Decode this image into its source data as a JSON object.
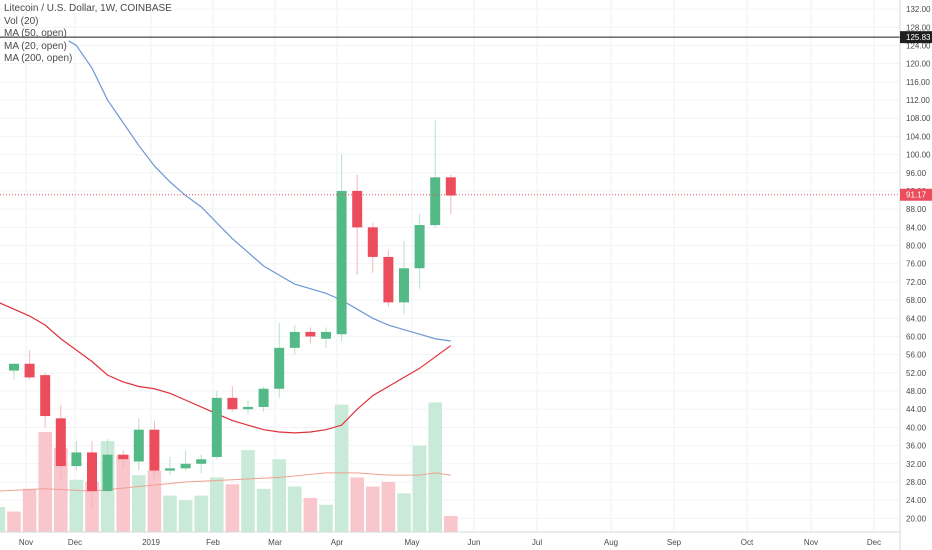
{
  "legend": {
    "title": "Litecoin / U.S. Dollar, 1W, COINBASE",
    "vol": "Vol (20)",
    "ma50": "MA (50, open)",
    "ma20": "MA (20, open)",
    "ma200": "MA (200, open)"
  },
  "price_tags": {
    "horizontal_line": "125.83",
    "last_price": "91.17"
  },
  "colors": {
    "up": "#53b987",
    "down": "#eb4d5c",
    "ma_blue": "#6f98d4",
    "ma_red": "#e0303a",
    "vol_ma": "#f0a090",
    "last_price_line": "#eb4d5c",
    "horizontal_line": "#1a1a1a"
  },
  "chart_data": {
    "type": "candlestick",
    "title": "Litecoin / U.S. Dollar, 1W, COINBASE",
    "x_labels": [
      "Nov",
      "Dec",
      "2019",
      "Feb",
      "Mar",
      "Apr",
      "May",
      "Jun",
      "Jul",
      "Aug",
      "Sep",
      "Oct",
      "Nov",
      "Dec"
    ],
    "y_ticks": [
      20,
      24,
      28,
      32,
      36,
      40,
      44,
      48,
      52,
      56,
      60,
      64,
      68,
      72,
      76,
      80,
      84,
      88,
      92,
      96,
      100,
      104,
      108,
      112,
      116,
      120,
      124,
      128,
      132
    ],
    "y_tick_labels": [
      "20.00",
      "24.00",
      "28.00",
      "32.00",
      "36.00",
      "40.00",
      "44.00",
      "48.00",
      "52.00",
      "56.00",
      "60.00",
      "64.00",
      "68.00",
      "72.00",
      "76.00",
      "80.00",
      "84.00",
      "88.00",
      "92.00",
      "96.00",
      "100.00",
      "104.00",
      "108.00",
      "112.00",
      "116.00",
      "120.00",
      "124.00",
      "128.00",
      "132.00"
    ],
    "ylim": [
      17,
      134
    ],
    "horizontal_line": 125.83,
    "last_price": 91.17,
    "candles": [
      {
        "i": 0,
        "o": 52.5,
        "h": 53.5,
        "l": 50.5,
        "c": 54.0
      },
      {
        "i": 1,
        "o": 54.0,
        "h": 57.0,
        "l": 50.5,
        "c": 51.0
      },
      {
        "i": 2,
        "o": 51.5,
        "h": 52.0,
        "l": 40.0,
        "c": 42.5
      },
      {
        "i": 3,
        "o": 42.0,
        "h": 45.0,
        "l": 28.0,
        "c": 31.5
      },
      {
        "i": 4,
        "o": 31.5,
        "h": 37.0,
        "l": 30.5,
        "c": 34.5
      },
      {
        "i": 5,
        "o": 34.5,
        "h": 37.0,
        "l": 22.0,
        "c": 26.0
      },
      {
        "i": 6,
        "o": 26.0,
        "h": 37.5,
        "l": 25.5,
        "c": 34.0
      },
      {
        "i": 7,
        "o": 34.0,
        "h": 35.0,
        "l": 31.0,
        "c": 33.0
      },
      {
        "i": 8,
        "o": 32.5,
        "h": 42.0,
        "l": 30.5,
        "c": 39.5
      },
      {
        "i": 9,
        "o": 39.5,
        "h": 41.5,
        "l": 29.0,
        "c": 30.5
      },
      {
        "i": 10,
        "o": 30.5,
        "h": 33.5,
        "l": 29.5,
        "c": 31.0
      },
      {
        "i": 11,
        "o": 31.0,
        "h": 35.0,
        "l": 30.5,
        "c": 32.0
      },
      {
        "i": 12,
        "o": 32.0,
        "h": 34.0,
        "l": 30.0,
        "c": 33.0
      },
      {
        "i": 13,
        "o": 33.5,
        "h": 48.0,
        "l": 33.0,
        "c": 46.5
      },
      {
        "i": 14,
        "o": 46.5,
        "h": 49.0,
        "l": 43.5,
        "c": 44.0
      },
      {
        "i": 15,
        "o": 44.0,
        "h": 46.0,
        "l": 43.0,
        "c": 44.5
      },
      {
        "i": 16,
        "o": 44.5,
        "h": 49.0,
        "l": 43.5,
        "c": 48.5
      },
      {
        "i": 17,
        "o": 48.5,
        "h": 63.0,
        "l": 46.5,
        "c": 57.5
      },
      {
        "i": 18,
        "o": 57.5,
        "h": 62.5,
        "l": 56.0,
        "c": 61.0
      },
      {
        "i": 19,
        "o": 61.0,
        "h": 62.0,
        "l": 58.5,
        "c": 60.0
      },
      {
        "i": 20,
        "o": 59.5,
        "h": 62.0,
        "l": 57.5,
        "c": 61.0
      },
      {
        "i": 21,
        "o": 60.5,
        "h": 100.0,
        "l": 59.0,
        "c": 92.0
      },
      {
        "i": 22,
        "o": 92.0,
        "h": 95.5,
        "l": 73.5,
        "c": 84.0
      },
      {
        "i": 23,
        "o": 84.0,
        "h": 85.0,
        "l": 74.0,
        "c": 77.5
      },
      {
        "i": 24,
        "o": 77.5,
        "h": 79.0,
        "l": 66.5,
        "c": 67.5
      },
      {
        "i": 25,
        "o": 67.5,
        "h": 81.0,
        "l": 65.0,
        "c": 75.0
      },
      {
        "i": 26,
        "o": 75.0,
        "h": 87.0,
        "l": 70.5,
        "c": 84.5
      },
      {
        "i": 27,
        "o": 84.5,
        "h": 107.5,
        "l": 84.0,
        "c": 95.0
      },
      {
        "i": 28,
        "o": 95.0,
        "h": 95.5,
        "l": 87.0,
        "c": 91.0
      }
    ],
    "volumes": [
      {
        "i": -1,
        "v": 22.5,
        "dir": "up"
      },
      {
        "i": 0,
        "v": 21.5,
        "dir": "down"
      },
      {
        "i": 1,
        "v": 26.5,
        "dir": "down"
      },
      {
        "i": 2,
        "v": 39.0,
        "dir": "down"
      },
      {
        "i": 3,
        "v": 35.5,
        "dir": "down"
      },
      {
        "i": 4,
        "v": 28.5,
        "dir": "up"
      },
      {
        "i": 5,
        "v": 28.0,
        "dir": "down"
      },
      {
        "i": 6,
        "v": 37.0,
        "dir": "up"
      },
      {
        "i": 7,
        "v": 34.0,
        "dir": "down"
      },
      {
        "i": 8,
        "v": 29.5,
        "dir": "up"
      },
      {
        "i": 9,
        "v": 30.5,
        "dir": "down"
      },
      {
        "i": 10,
        "v": 25.0,
        "dir": "up"
      },
      {
        "i": 11,
        "v": 24.0,
        "dir": "up"
      },
      {
        "i": 12,
        "v": 25.0,
        "dir": "up"
      },
      {
        "i": 13,
        "v": 29.0,
        "dir": "up"
      },
      {
        "i": 14,
        "v": 27.5,
        "dir": "down"
      },
      {
        "i": 15,
        "v": 35.0,
        "dir": "up"
      },
      {
        "i": 16,
        "v": 26.5,
        "dir": "up"
      },
      {
        "i": 17,
        "v": 33.0,
        "dir": "up"
      },
      {
        "i": 18,
        "v": 27.0,
        "dir": "up"
      },
      {
        "i": 19,
        "v": 24.5,
        "dir": "down"
      },
      {
        "i": 20,
        "v": 23.0,
        "dir": "up"
      },
      {
        "i": 21,
        "v": 45.0,
        "dir": "up"
      },
      {
        "i": 22,
        "v": 29.0,
        "dir": "down"
      },
      {
        "i": 23,
        "v": 27.0,
        "dir": "down"
      },
      {
        "i": 24,
        "v": 28.0,
        "dir": "down"
      },
      {
        "i": 25,
        "v": 25.5,
        "dir": "up"
      },
      {
        "i": 26,
        "v": 36.0,
        "dir": "up"
      },
      {
        "i": 27,
        "v": 45.5,
        "dir": "up"
      },
      {
        "i": 28,
        "v": 20.5,
        "dir": "down"
      }
    ],
    "ma_blue": [
      {
        "i": 3.5,
        "v": 125.0
      },
      {
        "i": 4.0,
        "v": 124.0
      },
      {
        "i": 5.0,
        "v": 119.0
      },
      {
        "i": 6.0,
        "v": 112.0
      },
      {
        "i": 7.0,
        "v": 107.0
      },
      {
        "i": 8.0,
        "v": 102.0
      },
      {
        "i": 9.0,
        "v": 97.5
      },
      {
        "i": 10.0,
        "v": 94.0
      },
      {
        "i": 11.0,
        "v": 91.0
      },
      {
        "i": 12.0,
        "v": 88.5
      },
      {
        "i": 13.0,
        "v": 85.0
      },
      {
        "i": 14.0,
        "v": 81.5
      },
      {
        "i": 15.0,
        "v": 78.5
      },
      {
        "i": 16.0,
        "v": 75.5
      },
      {
        "i": 17.0,
        "v": 73.5
      },
      {
        "i": 18.0,
        "v": 71.5
      },
      {
        "i": 19.0,
        "v": 70.5
      },
      {
        "i": 20.0,
        "v": 69.5
      },
      {
        "i": 21.0,
        "v": 68.0
      },
      {
        "i": 22.0,
        "v": 66.0
      },
      {
        "i": 23.0,
        "v": 64.0
      },
      {
        "i": 24.0,
        "v": 62.5
      },
      {
        "i": 25.0,
        "v": 61.5
      },
      {
        "i": 26.0,
        "v": 60.5
      },
      {
        "i": 27.0,
        "v": 59.5
      },
      {
        "i": 28.0,
        "v": 59.0
      }
    ],
    "ma_red": [
      {
        "i": -1.0,
        "v": 67.5
      },
      {
        "i": 0.0,
        "v": 66.0
      },
      {
        "i": 1.0,
        "v": 64.5
      },
      {
        "i": 2.0,
        "v": 62.5
      },
      {
        "i": 3.0,
        "v": 59.5
      },
      {
        "i": 4.0,
        "v": 57.0
      },
      {
        "i": 5.0,
        "v": 54.5
      },
      {
        "i": 6.0,
        "v": 51.5
      },
      {
        "i": 7.0,
        "v": 50.0
      },
      {
        "i": 8.0,
        "v": 49.0
      },
      {
        "i": 9.0,
        "v": 48.5
      },
      {
        "i": 10.0,
        "v": 47.5
      },
      {
        "i": 11.0,
        "v": 46.0
      },
      {
        "i": 12.0,
        "v": 44.5
      },
      {
        "i": 13.0,
        "v": 43.0
      },
      {
        "i": 14.0,
        "v": 41.5
      },
      {
        "i": 15.0,
        "v": 40.5
      },
      {
        "i": 16.0,
        "v": 39.5
      },
      {
        "i": 17.0,
        "v": 39.0
      },
      {
        "i": 18.0,
        "v": 38.8
      },
      {
        "i": 19.0,
        "v": 39.0
      },
      {
        "i": 20.0,
        "v": 39.5
      },
      {
        "i": 21.0,
        "v": 40.5
      },
      {
        "i": 22.0,
        "v": 44.0
      },
      {
        "i": 23.0,
        "v": 47.0
      },
      {
        "i": 24.0,
        "v": 49.0
      },
      {
        "i": 25.0,
        "v": 51.0
      },
      {
        "i": 26.0,
        "v": 53.0
      },
      {
        "i": 27.0,
        "v": 55.5
      },
      {
        "i": 28.0,
        "v": 58.0
      }
    ],
    "vol_ma": [
      {
        "i": -1.0,
        "v": 26.0
      },
      {
        "i": 2.0,
        "v": 26.5
      },
      {
        "i": 5.0,
        "v": 26.0
      },
      {
        "i": 8.0,
        "v": 27.0
      },
      {
        "i": 11.0,
        "v": 28.0
      },
      {
        "i": 14.0,
        "v": 28.5
      },
      {
        "i": 17.0,
        "v": 29.0
      },
      {
        "i": 20.0,
        "v": 30.0
      },
      {
        "i": 22.0,
        "v": 30.0
      },
      {
        "i": 24.0,
        "v": 29.5
      },
      {
        "i": 26.0,
        "v": 29.5
      },
      {
        "i": 27.0,
        "v": 30.0
      },
      {
        "i": 28.0,
        "v": 29.5
      }
    ]
  }
}
